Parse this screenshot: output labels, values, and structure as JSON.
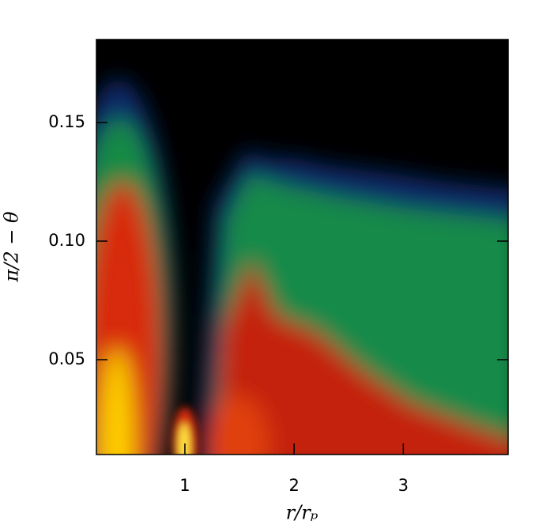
{
  "chart_data": {
    "type": "heatmap",
    "x_label": "r/rₚ",
    "y_label": "π/2 − θ",
    "xlim": [
      0.19,
      3.96
    ],
    "xticks": [
      1,
      2,
      3
    ],
    "ylim": [
      0.01,
      0.185
    ],
    "yticks": [
      {
        "value": 0.05,
        "label": "0.05"
      },
      {
        "value": 0.1,
        "label": "0.10"
      },
      {
        "value": 0.15,
        "label": "0.15"
      }
    ]
  }
}
